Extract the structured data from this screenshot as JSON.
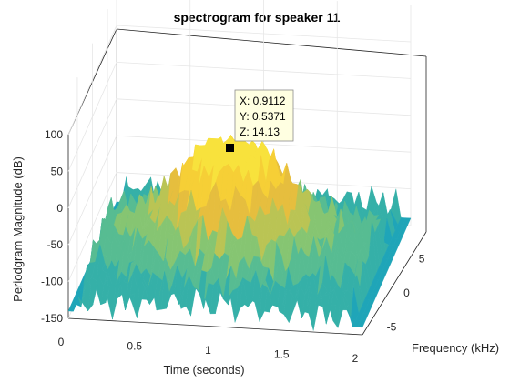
{
  "chart_data": {
    "type": "surface3d",
    "title": "spectrogram for speaker 11",
    "xlabel": "Time (seconds)",
    "ylabel": "Frequency (kHz)",
    "zlabel": "Periodgram Magnitude (dB)",
    "x_ticks": [
      "0",
      "0.5",
      "1",
      "1.5",
      "2"
    ],
    "y_ticks": [
      "-5",
      "0",
      "5"
    ],
    "z_ticks": [
      "-150",
      "-100",
      "-50",
      "0",
      "50",
      "100"
    ],
    "xlim": [
      0,
      2
    ],
    "ylim": [
      -8,
      8
    ],
    "zlim": [
      -150,
      100
    ],
    "grid": true,
    "colormap": "parula",
    "surface_colors": {
      "low": "#1fa5b8",
      "mid": "#6cc08a",
      "high": "#f5c83a",
      "peak": "#f8e23c"
    },
    "datatip": {
      "x": 0.9112,
      "y": 0.5371,
      "z": 14.13,
      "lines": [
        "X: 0.9112",
        "Y: 0.5371",
        "Z: 14.13"
      ]
    }
  }
}
